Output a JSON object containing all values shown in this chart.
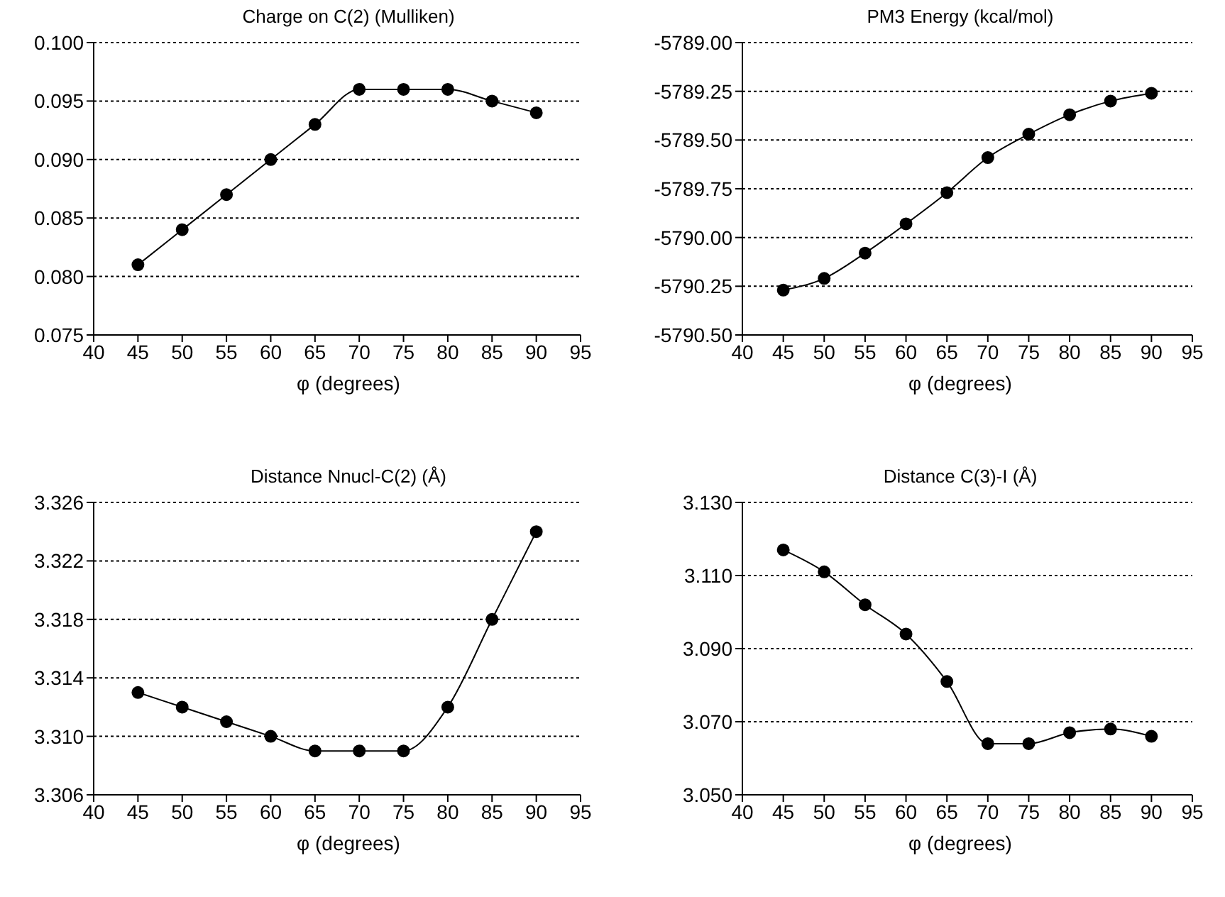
{
  "chart_data": [
    {
      "type": "line",
      "title": "Charge on C(2) (Mulliken)",
      "xlabel": "φ (degrees)",
      "x": [
        45,
        50,
        55,
        60,
        65,
        70,
        75,
        80,
        85,
        90
      ],
      "series": [
        {
          "color": "#000000",
          "values": [
            0.081,
            0.084,
            0.087,
            0.09,
            0.093,
            0.096,
            0.096,
            0.096,
            0.095,
            0.094
          ]
        }
      ],
      "xlim": [
        40,
        95
      ],
      "xticks": [
        40,
        45,
        50,
        55,
        60,
        65,
        70,
        75,
        80,
        85,
        90,
        95
      ],
      "ylim": [
        0.075,
        0.1
      ],
      "yticks": [
        {
          "value": 0.075,
          "label": "0.075"
        },
        {
          "value": 0.08,
          "label": "0.080"
        },
        {
          "value": 0.085,
          "label": "0.085"
        },
        {
          "value": 0.09,
          "label": "0.090"
        },
        {
          "value": 0.095,
          "label": "0.095"
        },
        {
          "value": 0.1,
          "label": "0.100"
        }
      ],
      "grid": "y",
      "legend": false,
      "marker": "circle",
      "line_style": "solid"
    },
    {
      "type": "line",
      "title": "PM3 Energy (kcal/mol)",
      "xlabel": "φ (degrees)",
      "x": [
        45,
        50,
        55,
        60,
        65,
        70,
        75,
        80,
        85,
        90
      ],
      "series": [
        {
          "color": "#000000",
          "values": [
            -5790.27,
            -5790.21,
            -5790.08,
            -5789.93,
            -5789.77,
            -5789.59,
            -5789.47,
            -5789.37,
            -5789.3,
            -5789.26
          ]
        }
      ],
      "xlim": [
        40,
        95
      ],
      "xticks": [
        40,
        45,
        50,
        55,
        60,
        65,
        70,
        75,
        80,
        85,
        90,
        95
      ],
      "ylim": [
        -5790.5,
        -5789.0
      ],
      "yticks": [
        {
          "value": -5790.5,
          "label": "-5790.50"
        },
        {
          "value": -5790.25,
          "label": "-5790.25"
        },
        {
          "value": -5790.0,
          "label": "-5790.00"
        },
        {
          "value": -5789.75,
          "label": "-5789.75"
        },
        {
          "value": -5789.5,
          "label": "-5789.50"
        },
        {
          "value": -5789.25,
          "label": "-5789.25"
        },
        {
          "value": -5789.0,
          "label": "-5789.00"
        }
      ],
      "grid": "y",
      "legend": false,
      "marker": "circle",
      "line_style": "solid"
    },
    {
      "type": "line",
      "title": "Distance Nnucl-C(2)  (Å)",
      "xlabel": "φ (degrees)",
      "x": [
        45,
        50,
        55,
        60,
        65,
        70,
        75,
        80,
        85,
        90
      ],
      "series": [
        {
          "color": "#000000",
          "values": [
            3.313,
            3.312,
            3.311,
            3.31,
            3.309,
            3.309,
            3.309,
            3.312,
            3.318,
            3.324
          ]
        }
      ],
      "xlim": [
        40,
        95
      ],
      "xticks": [
        40,
        45,
        50,
        55,
        60,
        65,
        70,
        75,
        80,
        85,
        90,
        95
      ],
      "ylim": [
        3.306,
        3.326
      ],
      "yticks": [
        3.306,
        {
          "value": 3.31,
          "label": "3.310"
        },
        3.314,
        3.318,
        3.322,
        3.326
      ],
      "grid": "y",
      "legend": false,
      "marker": "circle",
      "line_style": "solid"
    },
    {
      "type": "line",
      "title": "Distance C(3)-I  (Å)",
      "xlabel": "φ (degrees)",
      "x": [
        45,
        50,
        55,
        60,
        65,
        70,
        75,
        80,
        85,
        90
      ],
      "series": [
        {
          "color": "#000000",
          "values": [
            3.117,
            3.111,
            3.102,
            3.094,
            3.081,
            3.064,
            3.064,
            3.067,
            3.068,
            3.066
          ]
        }
      ],
      "xlim": [
        40,
        95
      ],
      "xticks": [
        40,
        45,
        50,
        55,
        60,
        65,
        70,
        75,
        80,
        85,
        90,
        95
      ],
      "ylim": [
        3.05,
        3.13
      ],
      "yticks": [
        {
          "value": 3.05,
          "label": "3.050"
        },
        {
          "value": 3.07,
          "label": "3.070"
        },
        {
          "value": 3.09,
          "label": "3.090"
        },
        {
          "value": 3.11,
          "label": "3.110"
        },
        {
          "value": 3.13,
          "label": "3.130"
        }
      ],
      "grid": "y",
      "legend": false,
      "marker": "circle",
      "line_style": "solid"
    }
  ]
}
